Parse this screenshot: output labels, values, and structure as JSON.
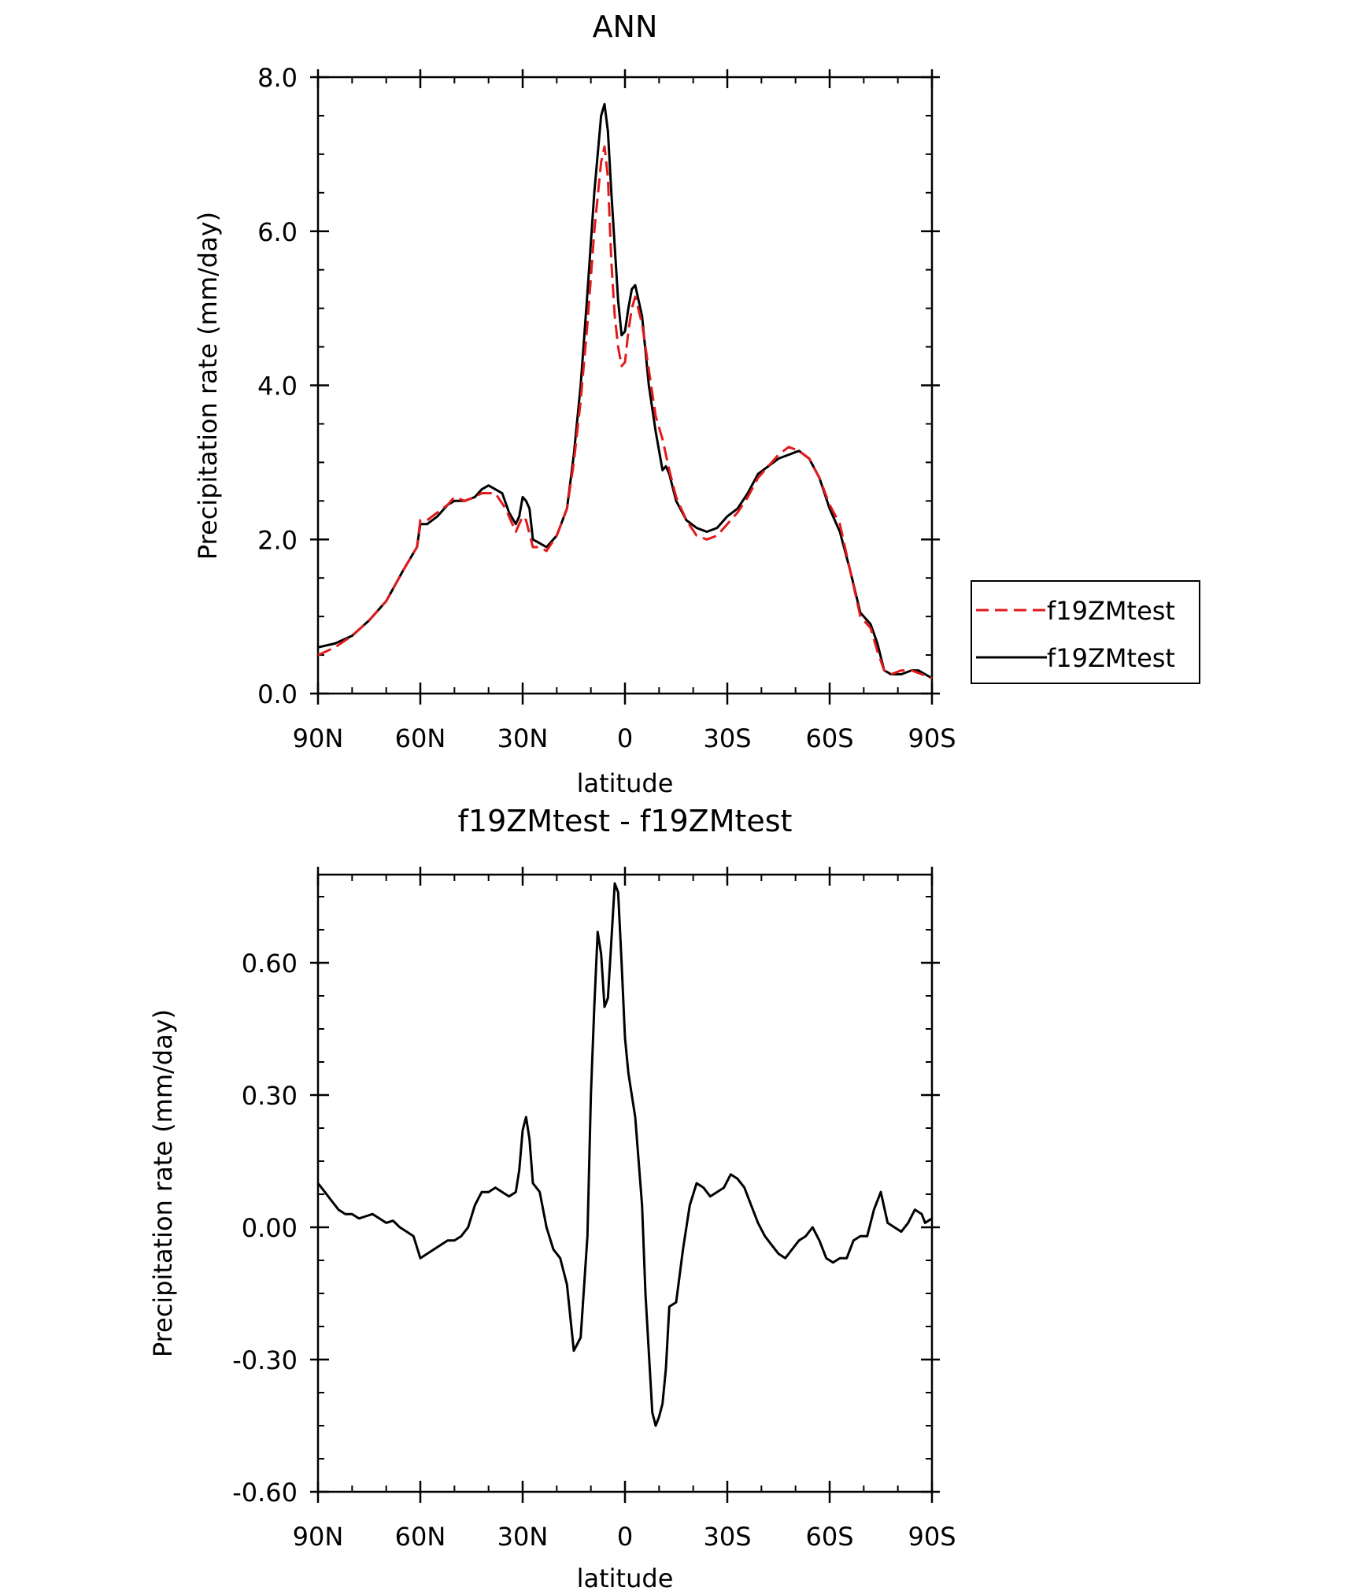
{
  "colors": {
    "model": "#e31a1c",
    "control": "#000000",
    "axis": "#000000"
  },
  "chart_data": [
    {
      "type": "line",
      "title": "ANN",
      "xlabel": "latitude",
      "ylabel": "Precipitation rate (mm/day)",
      "xlim": [
        -90,
        90
      ],
      "ylim": [
        0,
        8
      ],
      "grid": false,
      "x_tick_values": [
        -90,
        -60,
        -30,
        0,
        30,
        60,
        90
      ],
      "x_tick_labels": [
        "90N",
        "60N",
        "30N",
        "0",
        "30S",
        "60S",
        "90S"
      ],
      "y_tick_values": [
        0,
        2,
        4,
        6,
        8
      ],
      "y_tick_labels": [
        "0.0",
        "2.0",
        "4.0",
        "6.0",
        "8.0"
      ],
      "legend": {
        "position": "right",
        "entries": [
          "f19ZMtest",
          "f19ZMtest"
        ]
      },
      "series": [
        {
          "name": "f19ZMtest",
          "style": "dashed",
          "color": "#e31a1c",
          "points": [
            [
              -90,
              0.5
            ],
            [
              -85,
              0.6
            ],
            [
              -80,
              0.75
            ],
            [
              -75,
              0.95
            ],
            [
              -70,
              1.2
            ],
            [
              -65,
              1.6
            ],
            [
              -61,
              1.9
            ],
            [
              -60,
              2.25
            ],
            [
              -58,
              2.25
            ],
            [
              -55,
              2.35
            ],
            [
              -52,
              2.45
            ],
            [
              -50,
              2.55
            ],
            [
              -47,
              2.5
            ],
            [
              -44,
              2.55
            ],
            [
              -42,
              2.6
            ],
            [
              -38,
              2.6
            ],
            [
              -35,
              2.4
            ],
            [
              -32,
              2.1
            ],
            [
              -30,
              2.3
            ],
            [
              -29,
              2.25
            ],
            [
              -27,
              1.9
            ],
            [
              -25,
              1.9
            ],
            [
              -23,
              1.85
            ],
            [
              -20,
              2.05
            ],
            [
              -17,
              2.4
            ],
            [
              -15,
              3.0
            ],
            [
              -13,
              3.8
            ],
            [
              -11,
              4.8
            ],
            [
              -9,
              6.0
            ],
            [
              -7,
              6.9
            ],
            [
              -6,
              7.1
            ],
            [
              -5,
              6.7
            ],
            [
              -4,
              5.6
            ],
            [
              -3,
              4.9
            ],
            [
              -2,
              4.5
            ],
            [
              -1,
              4.25
            ],
            [
              0,
              4.3
            ],
            [
              1,
              4.7
            ],
            [
              2,
              5.0
            ],
            [
              3,
              5.15
            ],
            [
              5,
              4.8
            ],
            [
              7,
              4.2
            ],
            [
              9,
              3.6
            ],
            [
              11,
              3.3
            ],
            [
              13,
              2.9
            ],
            [
              15,
              2.55
            ],
            [
              18,
              2.25
            ],
            [
              21,
              2.05
            ],
            [
              24,
              2.0
            ],
            [
              27,
              2.05
            ],
            [
              30,
              2.2
            ],
            [
              33,
              2.35
            ],
            [
              36,
              2.55
            ],
            [
              39,
              2.8
            ],
            [
              42,
              2.95
            ],
            [
              45,
              3.1
            ],
            [
              48,
              3.2
            ],
            [
              51,
              3.15
            ],
            [
              54,
              3.05
            ],
            [
              57,
              2.8
            ],
            [
              60,
              2.45
            ],
            [
              63,
              2.2
            ],
            [
              66,
              1.6
            ],
            [
              69,
              1.0
            ],
            [
              72,
              0.85
            ],
            [
              74,
              0.55
            ],
            [
              76,
              0.3
            ],
            [
              78,
              0.25
            ],
            [
              81,
              0.3
            ],
            [
              84,
              0.3
            ],
            [
              87,
              0.25
            ],
            [
              90,
              0.2
            ]
          ]
        },
        {
          "name": "f19ZMtest",
          "style": "solid",
          "color": "#000000",
          "points": [
            [
              -90,
              0.6
            ],
            [
              -85,
              0.65
            ],
            [
              -80,
              0.75
            ],
            [
              -75,
              0.95
            ],
            [
              -70,
              1.2
            ],
            [
              -65,
              1.6
            ],
            [
              -61,
              1.9
            ],
            [
              -60,
              2.2
            ],
            [
              -58,
              2.2
            ],
            [
              -55,
              2.3
            ],
            [
              -52,
              2.45
            ],
            [
              -50,
              2.5
            ],
            [
              -47,
              2.5
            ],
            [
              -44,
              2.55
            ],
            [
              -42,
              2.65
            ],
            [
              -40,
              2.7
            ],
            [
              -38,
              2.65
            ],
            [
              -36,
              2.6
            ],
            [
              -34,
              2.35
            ],
            [
              -32,
              2.2
            ],
            [
              -31,
              2.3
            ],
            [
              -30,
              2.55
            ],
            [
              -29,
              2.5
            ],
            [
              -28,
              2.4
            ],
            [
              -27,
              2.0
            ],
            [
              -25,
              1.95
            ],
            [
              -23,
              1.9
            ],
            [
              -20,
              2.05
            ],
            [
              -17,
              2.4
            ],
            [
              -15,
              3.1
            ],
            [
              -13,
              4.0
            ],
            [
              -11,
              5.2
            ],
            [
              -9,
              6.5
            ],
            [
              -7,
              7.5
            ],
            [
              -6,
              7.65
            ],
            [
              -5,
              7.3
            ],
            [
              -4,
              6.5
            ],
            [
              -3,
              5.8
            ],
            [
              -2,
              5.1
            ],
            [
              -1,
              4.65
            ],
            [
              0,
              4.7
            ],
            [
              1,
              5.0
            ],
            [
              2,
              5.25
            ],
            [
              3,
              5.3
            ],
            [
              5,
              4.9
            ],
            [
              7,
              4.0
            ],
            [
              9,
              3.4
            ],
            [
              11,
              2.9
            ],
            [
              12,
              2.95
            ],
            [
              13,
              2.85
            ],
            [
              15,
              2.5
            ],
            [
              18,
              2.25
            ],
            [
              21,
              2.15
            ],
            [
              24,
              2.1
            ],
            [
              27,
              2.15
            ],
            [
              30,
              2.3
            ],
            [
              33,
              2.4
            ],
            [
              36,
              2.6
            ],
            [
              39,
              2.85
            ],
            [
              42,
              2.95
            ],
            [
              45,
              3.05
            ],
            [
              48,
              3.1
            ],
            [
              51,
              3.15
            ],
            [
              54,
              3.05
            ],
            [
              57,
              2.8
            ],
            [
              60,
              2.4
            ],
            [
              63,
              2.1
            ],
            [
              66,
              1.6
            ],
            [
              69,
              1.05
            ],
            [
              72,
              0.9
            ],
            [
              74,
              0.65
            ],
            [
              76,
              0.3
            ],
            [
              78,
              0.25
            ],
            [
              81,
              0.25
            ],
            [
              84,
              0.3
            ],
            [
              86,
              0.3
            ],
            [
              88,
              0.25
            ],
            [
              90,
              0.2
            ]
          ]
        }
      ]
    },
    {
      "type": "line",
      "title": "f19ZMtest - f19ZMtest",
      "xlabel": "latitude",
      "ylabel": "Precipitation rate (mm/day)",
      "xlim": [
        -90,
        90
      ],
      "ylim": [
        -0.6,
        0.8
      ],
      "grid": false,
      "x_tick_values": [
        -90,
        -60,
        -30,
        0,
        30,
        60,
        90
      ],
      "x_tick_labels": [
        "90N",
        "60N",
        "30N",
        "0",
        "30S",
        "60S",
        "90S"
      ],
      "y_tick_values": [
        -0.6,
        -0.3,
        0,
        0.3,
        0.6
      ],
      "y_tick_labels": [
        "-0.60",
        "-0.30",
        "0.00",
        "0.30",
        "0.60"
      ],
      "series": [
        {
          "style": "solid",
          "color": "#000000",
          "points": [
            [
              -90,
              0.1
            ],
            [
              -88,
              0.08
            ],
            [
              -86,
              0.06
            ],
            [
              -84,
              0.04
            ],
            [
              -82,
              0.03
            ],
            [
              -80,
              0.03
            ],
            [
              -78,
              0.02
            ],
            [
              -76,
              0.025
            ],
            [
              -74,
              0.03
            ],
            [
              -72,
              0.02
            ],
            [
              -70,
              0.01
            ],
            [
              -68,
              0.015
            ],
            [
              -66,
              0.0
            ],
            [
              -64,
              -0.01
            ],
            [
              -62,
              -0.02
            ],
            [
              -60,
              -0.07
            ],
            [
              -58,
              -0.06
            ],
            [
              -56,
              -0.05
            ],
            [
              -54,
              -0.04
            ],
            [
              -52,
              -0.03
            ],
            [
              -50,
              -0.03
            ],
            [
              -48,
              -0.02
            ],
            [
              -46,
              0.0
            ],
            [
              -44,
              0.05
            ],
            [
              -42,
              0.08
            ],
            [
              -40,
              0.08
            ],
            [
              -38,
              0.09
            ],
            [
              -36,
              0.08
            ],
            [
              -34,
              0.07
            ],
            [
              -32,
              0.08
            ],
            [
              -31,
              0.13
            ],
            [
              -30,
              0.22
            ],
            [
              -29,
              0.25
            ],
            [
              -28,
              0.2
            ],
            [
              -27,
              0.1
            ],
            [
              -25,
              0.08
            ],
            [
              -23,
              0.0
            ],
            [
              -21,
              -0.05
            ],
            [
              -19,
              -0.07
            ],
            [
              -17,
              -0.13
            ],
            [
              -15,
              -0.28
            ],
            [
              -13,
              -0.25
            ],
            [
              -11,
              -0.02
            ],
            [
              -10,
              0.3
            ],
            [
              -9,
              0.5
            ],
            [
              -8,
              0.67
            ],
            [
              -7,
              0.62
            ],
            [
              -6,
              0.5
            ],
            [
              -5,
              0.52
            ],
            [
              -4,
              0.65
            ],
            [
              -3,
              0.78
            ],
            [
              -2,
              0.76
            ],
            [
              -1,
              0.6
            ],
            [
              0,
              0.43
            ],
            [
              1,
              0.35
            ],
            [
              3,
              0.25
            ],
            [
              5,
              0.05
            ],
            [
              6,
              -0.15
            ],
            [
              8,
              -0.42
            ],
            [
              9,
              -0.45
            ],
            [
              10,
              -0.43
            ],
            [
              11,
              -0.4
            ],
            [
              12,
              -0.32
            ],
            [
              13,
              -0.18
            ],
            [
              15,
              -0.17
            ],
            [
              17,
              -0.05
            ],
            [
              19,
              0.05
            ],
            [
              21,
              0.1
            ],
            [
              23,
              0.09
            ],
            [
              25,
              0.07
            ],
            [
              27,
              0.08
            ],
            [
              29,
              0.09
            ],
            [
              31,
              0.12
            ],
            [
              33,
              0.11
            ],
            [
              35,
              0.09
            ],
            [
              37,
              0.05
            ],
            [
              39,
              0.01
            ],
            [
              41,
              -0.02
            ],
            [
              43,
              -0.04
            ],
            [
              45,
              -0.06
            ],
            [
              47,
              -0.07
            ],
            [
              49,
              -0.05
            ],
            [
              51,
              -0.03
            ],
            [
              53,
              -0.02
            ],
            [
              55,
              0.0
            ],
            [
              57,
              -0.03
            ],
            [
              59,
              -0.07
            ],
            [
              61,
              -0.08
            ],
            [
              63,
              -0.07
            ],
            [
              65,
              -0.07
            ],
            [
              67,
              -0.03
            ],
            [
              69,
              -0.02
            ],
            [
              71,
              -0.02
            ],
            [
              73,
              0.04
            ],
            [
              75,
              0.08
            ],
            [
              77,
              0.01
            ],
            [
              79,
              0.0
            ],
            [
              81,
              -0.01
            ],
            [
              83,
              0.01
            ],
            [
              85,
              0.04
            ],
            [
              87,
              0.03
            ],
            [
              88,
              0.01
            ],
            [
              90,
              0.02
            ]
          ]
        }
      ]
    }
  ]
}
